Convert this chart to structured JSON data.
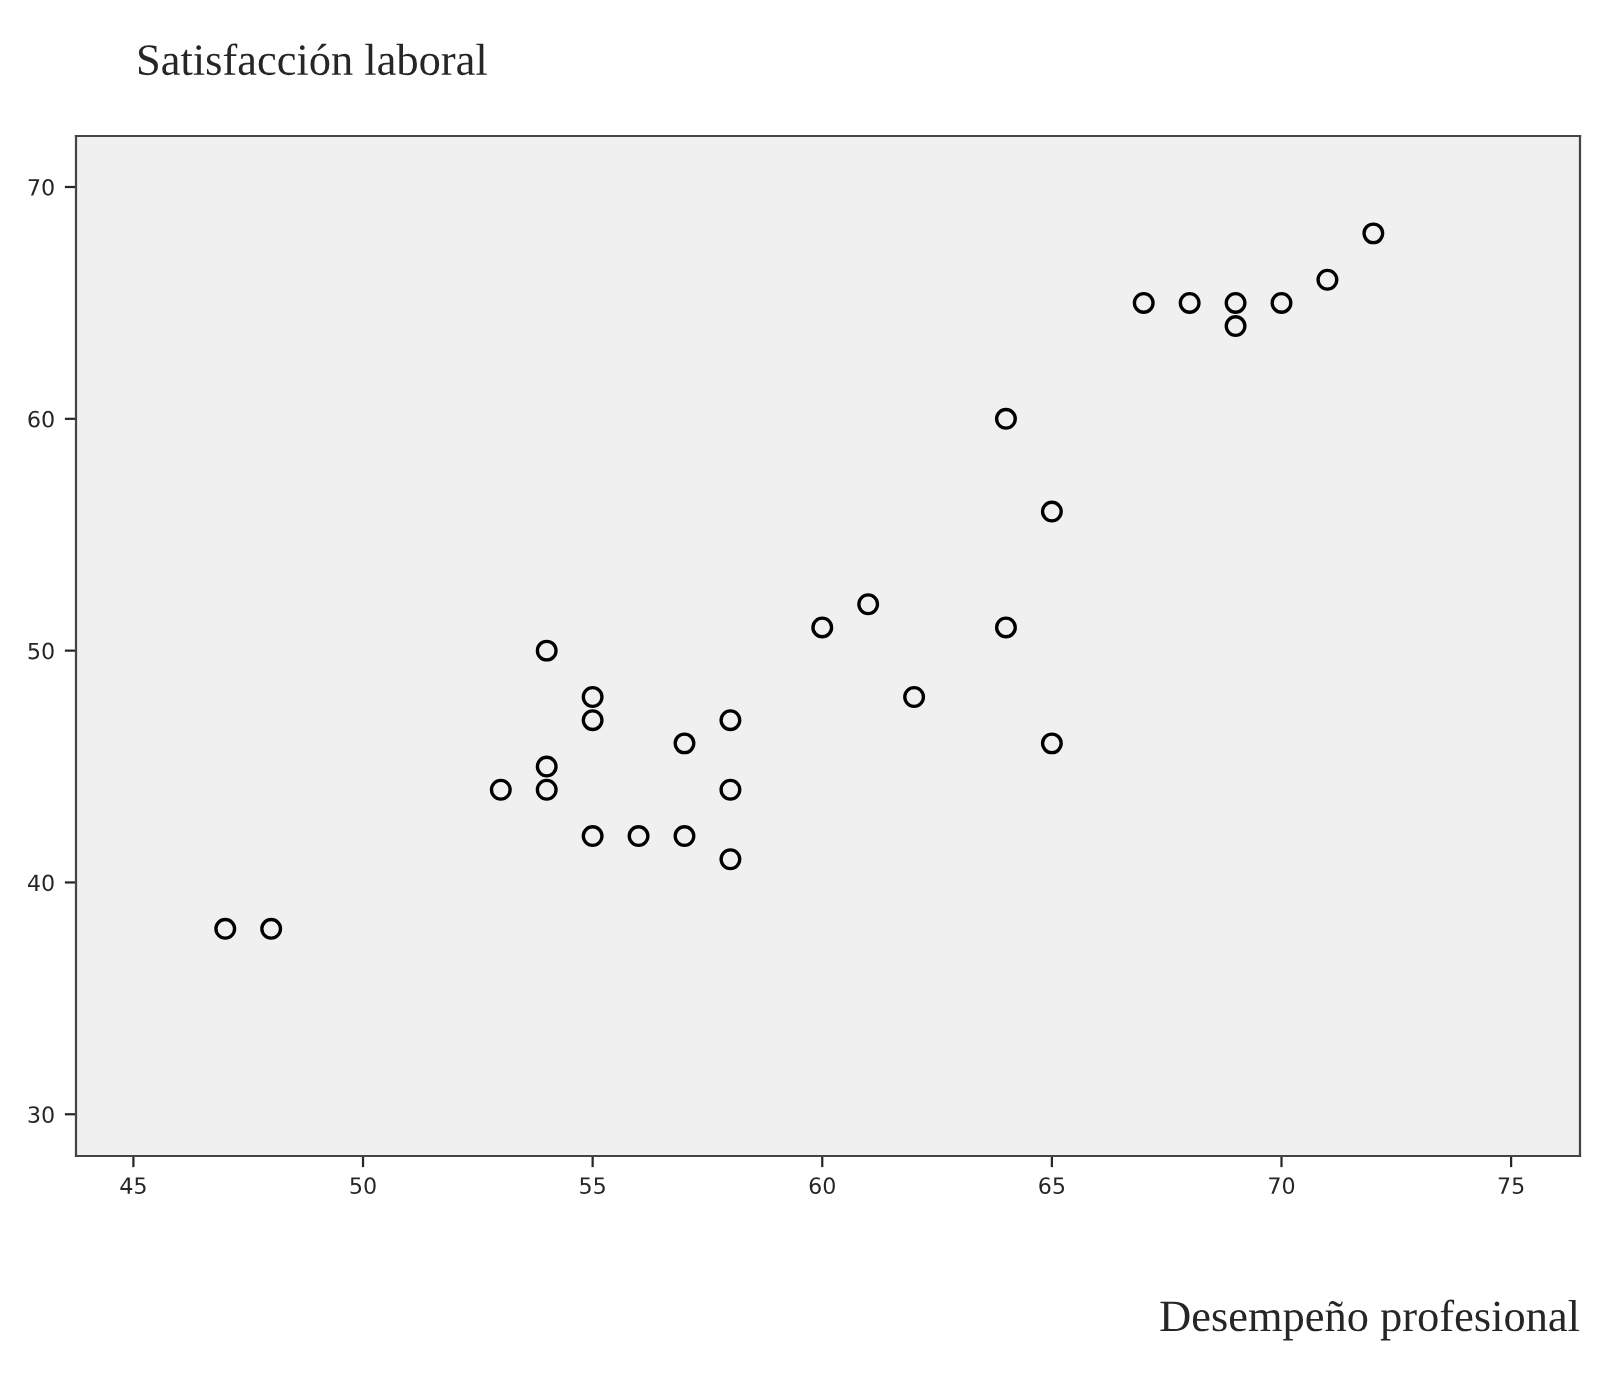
{
  "chart_data": {
    "type": "scatter",
    "xlabel": "Desempeño profesional",
    "ylabel": "Satisfacción laboral",
    "x": [
      47,
      48,
      53,
      54,
      54,
      54,
      55,
      55,
      55,
      56,
      57,
      57,
      58,
      58,
      58,
      60,
      61,
      62,
      64,
      64,
      65,
      65,
      67,
      68,
      69,
      69,
      70,
      71,
      72
    ],
    "values": [
      38,
      38,
      44,
      50,
      45,
      44,
      48,
      47,
      42,
      42,
      46,
      42,
      47,
      44,
      41,
      51,
      52,
      48,
      60,
      51,
      56,
      46,
      65,
      65,
      65,
      64,
      65,
      66,
      68
    ],
    "color": "#000000",
    "marker": "circle",
    "xlim": [
      43.75,
      76.5
    ],
    "ylim": [
      28.2,
      72.2
    ],
    "xticks": [
      45,
      50,
      55,
      60,
      65,
      70,
      75
    ],
    "yticks": [
      30,
      40,
      50,
      60,
      70
    ],
    "grid": false,
    "legend": false
  }
}
